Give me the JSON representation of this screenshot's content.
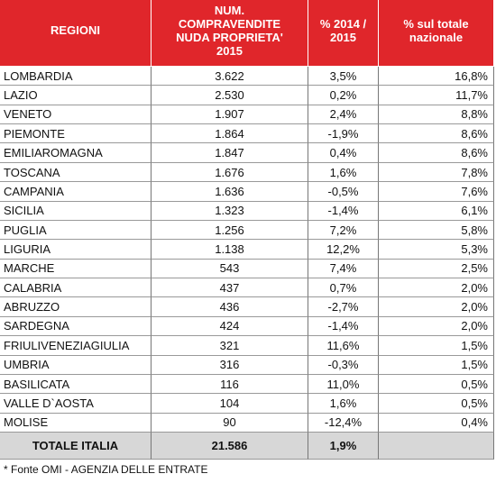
{
  "header": [
    [
      "REGIONI"
    ],
    [
      "NUM.",
      "COMPRAVENDITE",
      "NUDA PROPRIETA'",
      "2015"
    ],
    [
      "% 2014 /",
      "2015"
    ],
    [
      "% sul totale",
      "nazionale"
    ]
  ],
  "rows": [
    [
      "LOMBARDIA",
      "3.622",
      "3,5%",
      "16,8%"
    ],
    [
      "LAZIO",
      "2.530",
      "0,2%",
      "11,7%"
    ],
    [
      "VENETO",
      "1.907",
      "2,4%",
      "8,8%"
    ],
    [
      "PIEMONTE",
      "1.864",
      "-1,9%",
      "8,6%"
    ],
    [
      "EMILIAROMAGNA",
      "1.847",
      "0,4%",
      "8,6%"
    ],
    [
      "TOSCANA",
      "1.676",
      "1,6%",
      "7,8%"
    ],
    [
      "CAMPANIA",
      "1.636",
      "-0,5%",
      "7,6%"
    ],
    [
      "SICILIA",
      "1.323",
      "-1,4%",
      "6,1%"
    ],
    [
      "PUGLIA",
      "1.256",
      "7,2%",
      "5,8%"
    ],
    [
      "LIGURIA",
      "1.138",
      "12,2%",
      "5,3%"
    ],
    [
      "MARCHE",
      "543",
      "7,4%",
      "2,5%"
    ],
    [
      "CALABRIA",
      "437",
      "0,7%",
      "2,0%"
    ],
    [
      "ABRUZZO",
      "436",
      "-2,7%",
      "2,0%"
    ],
    [
      "SARDEGNA",
      "424",
      "-1,4%",
      "2,0%"
    ],
    [
      "FRIULIVENEZIAGIULIA",
      "321",
      "11,6%",
      "1,5%"
    ],
    [
      "UMBRIA",
      "316",
      "-0,3%",
      "1,5%"
    ],
    [
      "BASILICATA",
      "116",
      "11,0%",
      "0,5%"
    ],
    [
      "VALLE D`AOSTA",
      "104",
      "1,6%",
      "0,5%"
    ],
    [
      "MOLISE",
      "90",
      "-12,4%",
      "0,4%"
    ]
  ],
  "total": [
    "TOTALE ITALIA",
    "21.586",
    "1,9%"
  ],
  "footnote": "* Fonte OMI - AGENZIA DELLE ENTRATE"
}
